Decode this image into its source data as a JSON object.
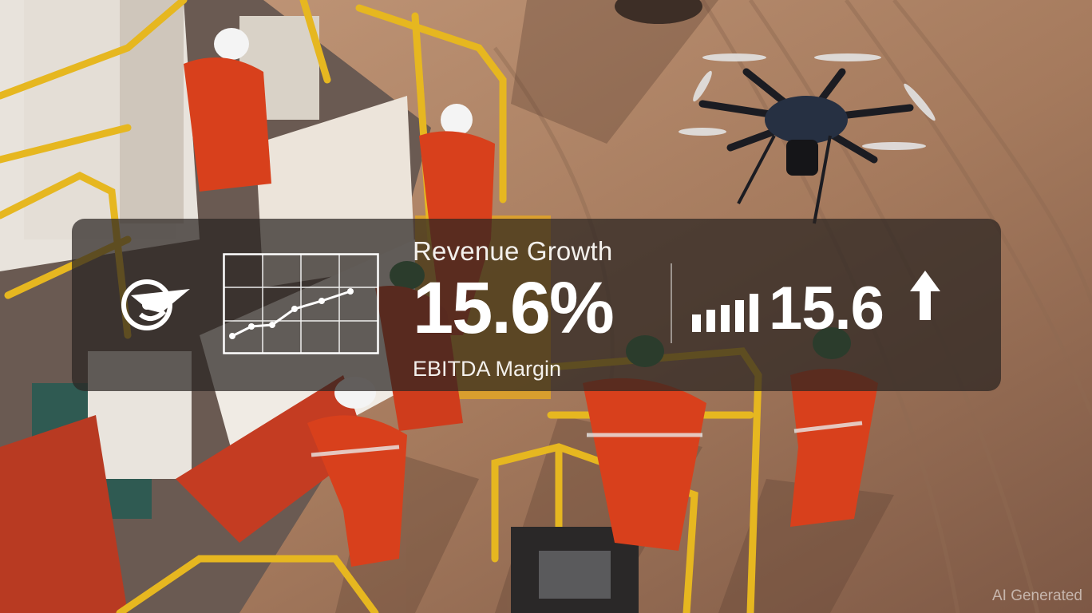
{
  "overlay": {
    "top_label": "Revenue Growth",
    "primary_value": "15.6%",
    "bottom_label": "EBITDA Margin",
    "secondary_value": "15.6"
  },
  "icons": {
    "logo": "company-emblem-icon",
    "chart": "line-chart-icon",
    "bars": "signal-bars-icon",
    "arrow": "arrow-up-icon"
  },
  "watermark": "AI Generated",
  "colors": {
    "panel": "#2a2421",
    "text": "#ffffff",
    "ground": "#b48a6d",
    "coverall": "#d8401c",
    "railing": "#e3b41f",
    "helmet_green": "#2f7c4a"
  }
}
